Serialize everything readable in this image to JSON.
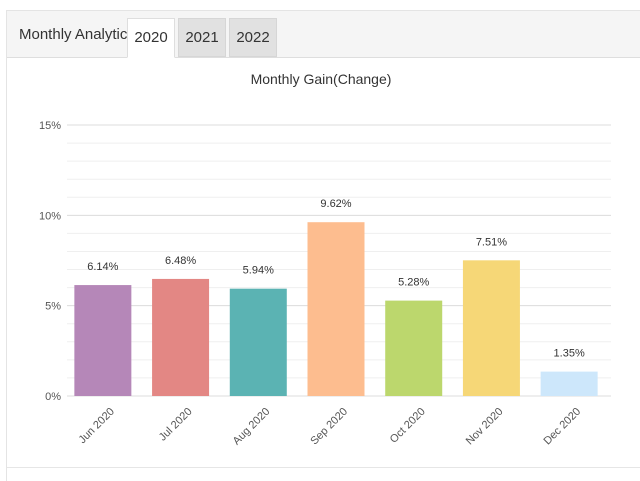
{
  "panel": {
    "title": "Monthly Analytics",
    "tabs": [
      {
        "label": "2020",
        "active": true
      },
      {
        "label": "2021",
        "active": false
      },
      {
        "label": "2022",
        "active": false
      }
    ]
  },
  "chart_data": {
    "type": "bar",
    "title": "Monthly Gain(Change)",
    "xlabel": "",
    "ylabel": "",
    "categories": [
      "Jun 2020",
      "Jul 2020",
      "Aug 2020",
      "Sep 2020",
      "Oct 2020",
      "Nov 2020",
      "Dec 2020"
    ],
    "values": [
      6.14,
      6.48,
      5.94,
      9.62,
      5.28,
      7.51,
      1.35
    ],
    "value_labels": [
      "6.14%",
      "6.48%",
      "5.94%",
      "9.62%",
      "5.28%",
      "7.51%",
      "1.35%"
    ],
    "colors": [
      "#b587b8",
      "#e38784",
      "#5bb3b3",
      "#fdbd8f",
      "#bcd76d",
      "#f6d777",
      "#cde7fb"
    ],
    "yticks": [
      0,
      5,
      10,
      15
    ],
    "ytick_labels": [
      "0%",
      "5%",
      "10%",
      "15%"
    ],
    "ylim": [
      0,
      15
    ],
    "grid": true,
    "legend": false
  }
}
